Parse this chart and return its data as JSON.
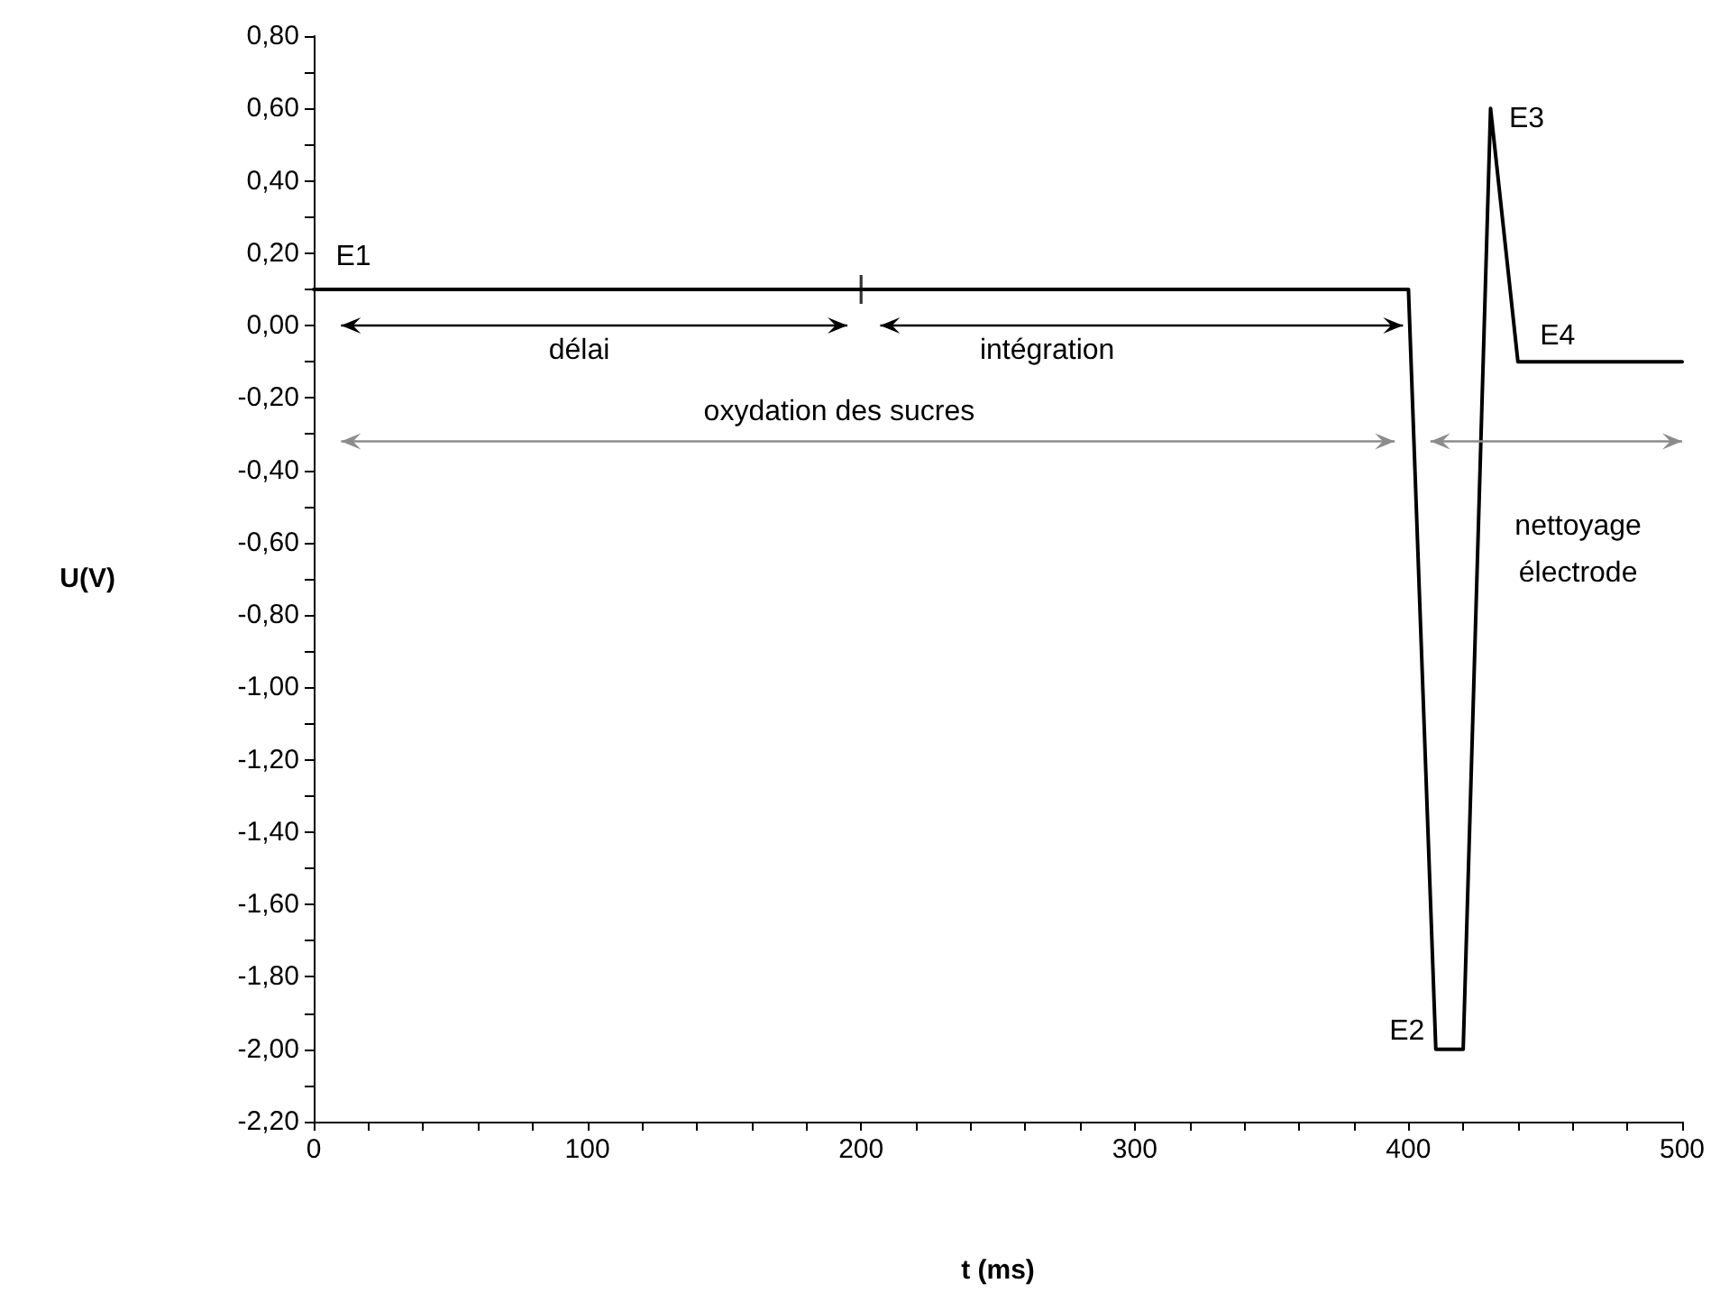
{
  "chart_data": {
    "type": "line",
    "xlabel": "t (ms)",
    "ylabel": "U(V)",
    "xlim": [
      0,
      500
    ],
    "xticks": [
      0,
      {
        "value": 20,
        "label": null
      },
      {
        "value": 40,
        "label": null
      },
      {
        "value": 60,
        "label": null
      },
      {
        "value": 80,
        "label": null
      },
      100,
      {
        "value": 120,
        "label": null
      },
      {
        "value": 140,
        "label": null
      },
      {
        "value": 160,
        "label": null
      },
      {
        "value": 180,
        "label": null
      },
      200,
      {
        "value": 220,
        "label": null
      },
      {
        "value": 240,
        "label": null
      },
      {
        "value": 260,
        "label": null
      },
      {
        "value": 280,
        "label": null
      },
      300,
      {
        "value": 320,
        "label": null
      },
      {
        "value": 340,
        "label": null
      },
      {
        "value": 360,
        "label": null
      },
      {
        "value": 380,
        "label": null
      },
      400,
      {
        "value": 420,
        "label": null
      },
      {
        "value": 440,
        "label": null
      },
      {
        "value": 460,
        "label": null
      },
      {
        "value": 480,
        "label": null
      },
      500
    ],
    "ylim": [
      -2.2,
      0.8
    ],
    "yticks": [
      {
        "value": -2.2,
        "label": "-2,20"
      },
      {
        "value": -2.1,
        "label": null
      },
      {
        "value": -2,
        "label": "-2,00"
      },
      {
        "value": -1.9,
        "label": null
      },
      {
        "value": -1.8,
        "label": "-1,80"
      },
      {
        "value": -1.7,
        "label": null
      },
      {
        "value": -1.6,
        "label": "-1,60"
      },
      {
        "value": -1.5,
        "label": null
      },
      {
        "value": -1.4,
        "label": "-1,40"
      },
      {
        "value": -1.3,
        "label": null
      },
      {
        "value": -1.2,
        "label": "-1,20"
      },
      {
        "value": -1.1,
        "label": null
      },
      {
        "value": -1,
        "label": "-1,00"
      },
      {
        "value": -0.9,
        "label": null
      },
      {
        "value": -0.8,
        "label": "-0,80"
      },
      {
        "value": -0.7,
        "label": null
      },
      {
        "value": -0.6,
        "label": "-0,60"
      },
      {
        "value": -0.5,
        "label": null
      },
      {
        "value": -0.4,
        "label": "-0,40"
      },
      {
        "value": -0.3,
        "label": null
      },
      {
        "value": -0.2,
        "label": "-0,20"
      },
      {
        "value": -0.1,
        "label": null
      },
      {
        "value": 0,
        "label": "0,00"
      },
      {
        "value": 0.1,
        "label": null
      },
      {
        "value": 0.2,
        "label": "0,20"
      },
      {
        "value": 0.3,
        "label": null
      },
      {
        "value": 0.4,
        "label": "0,40"
      },
      {
        "value": 0.5,
        "label": null
      },
      {
        "value": 0.6,
        "label": "0,60"
      },
      {
        "value": 0.7,
        "label": null
      },
      {
        "value": 0.8,
        "label": "0,80"
      }
    ],
    "series": [
      {
        "color": "#000000",
        "marker": "none",
        "x": [
          0,
          400,
          410,
          420,
          430,
          440,
          500
        ],
        "values": [
          0.1,
          0.1,
          -2.0,
          -2.0,
          0.6,
          -0.1,
          -0.1
        ]
      },
      {
        "type": "scatter",
        "color": "#000000",
        "marker": "cross",
        "x": [
          200
        ],
        "values": [
          0.1
        ]
      }
    ],
    "annotations": [
      {
        "text": "E1",
        "x": 0,
        "y": 0.1
      },
      {
        "text": "E2",
        "x": 410,
        "y": -2.0
      },
      {
        "text": "E3",
        "x": 430,
        "y": 0.6
      },
      {
        "text": "E4",
        "x": 440,
        "y": -0.1
      },
      "délai",
      "intégration",
      "oxydation des sucres",
      "nettoyage\nélectrode"
    ]
  }
}
